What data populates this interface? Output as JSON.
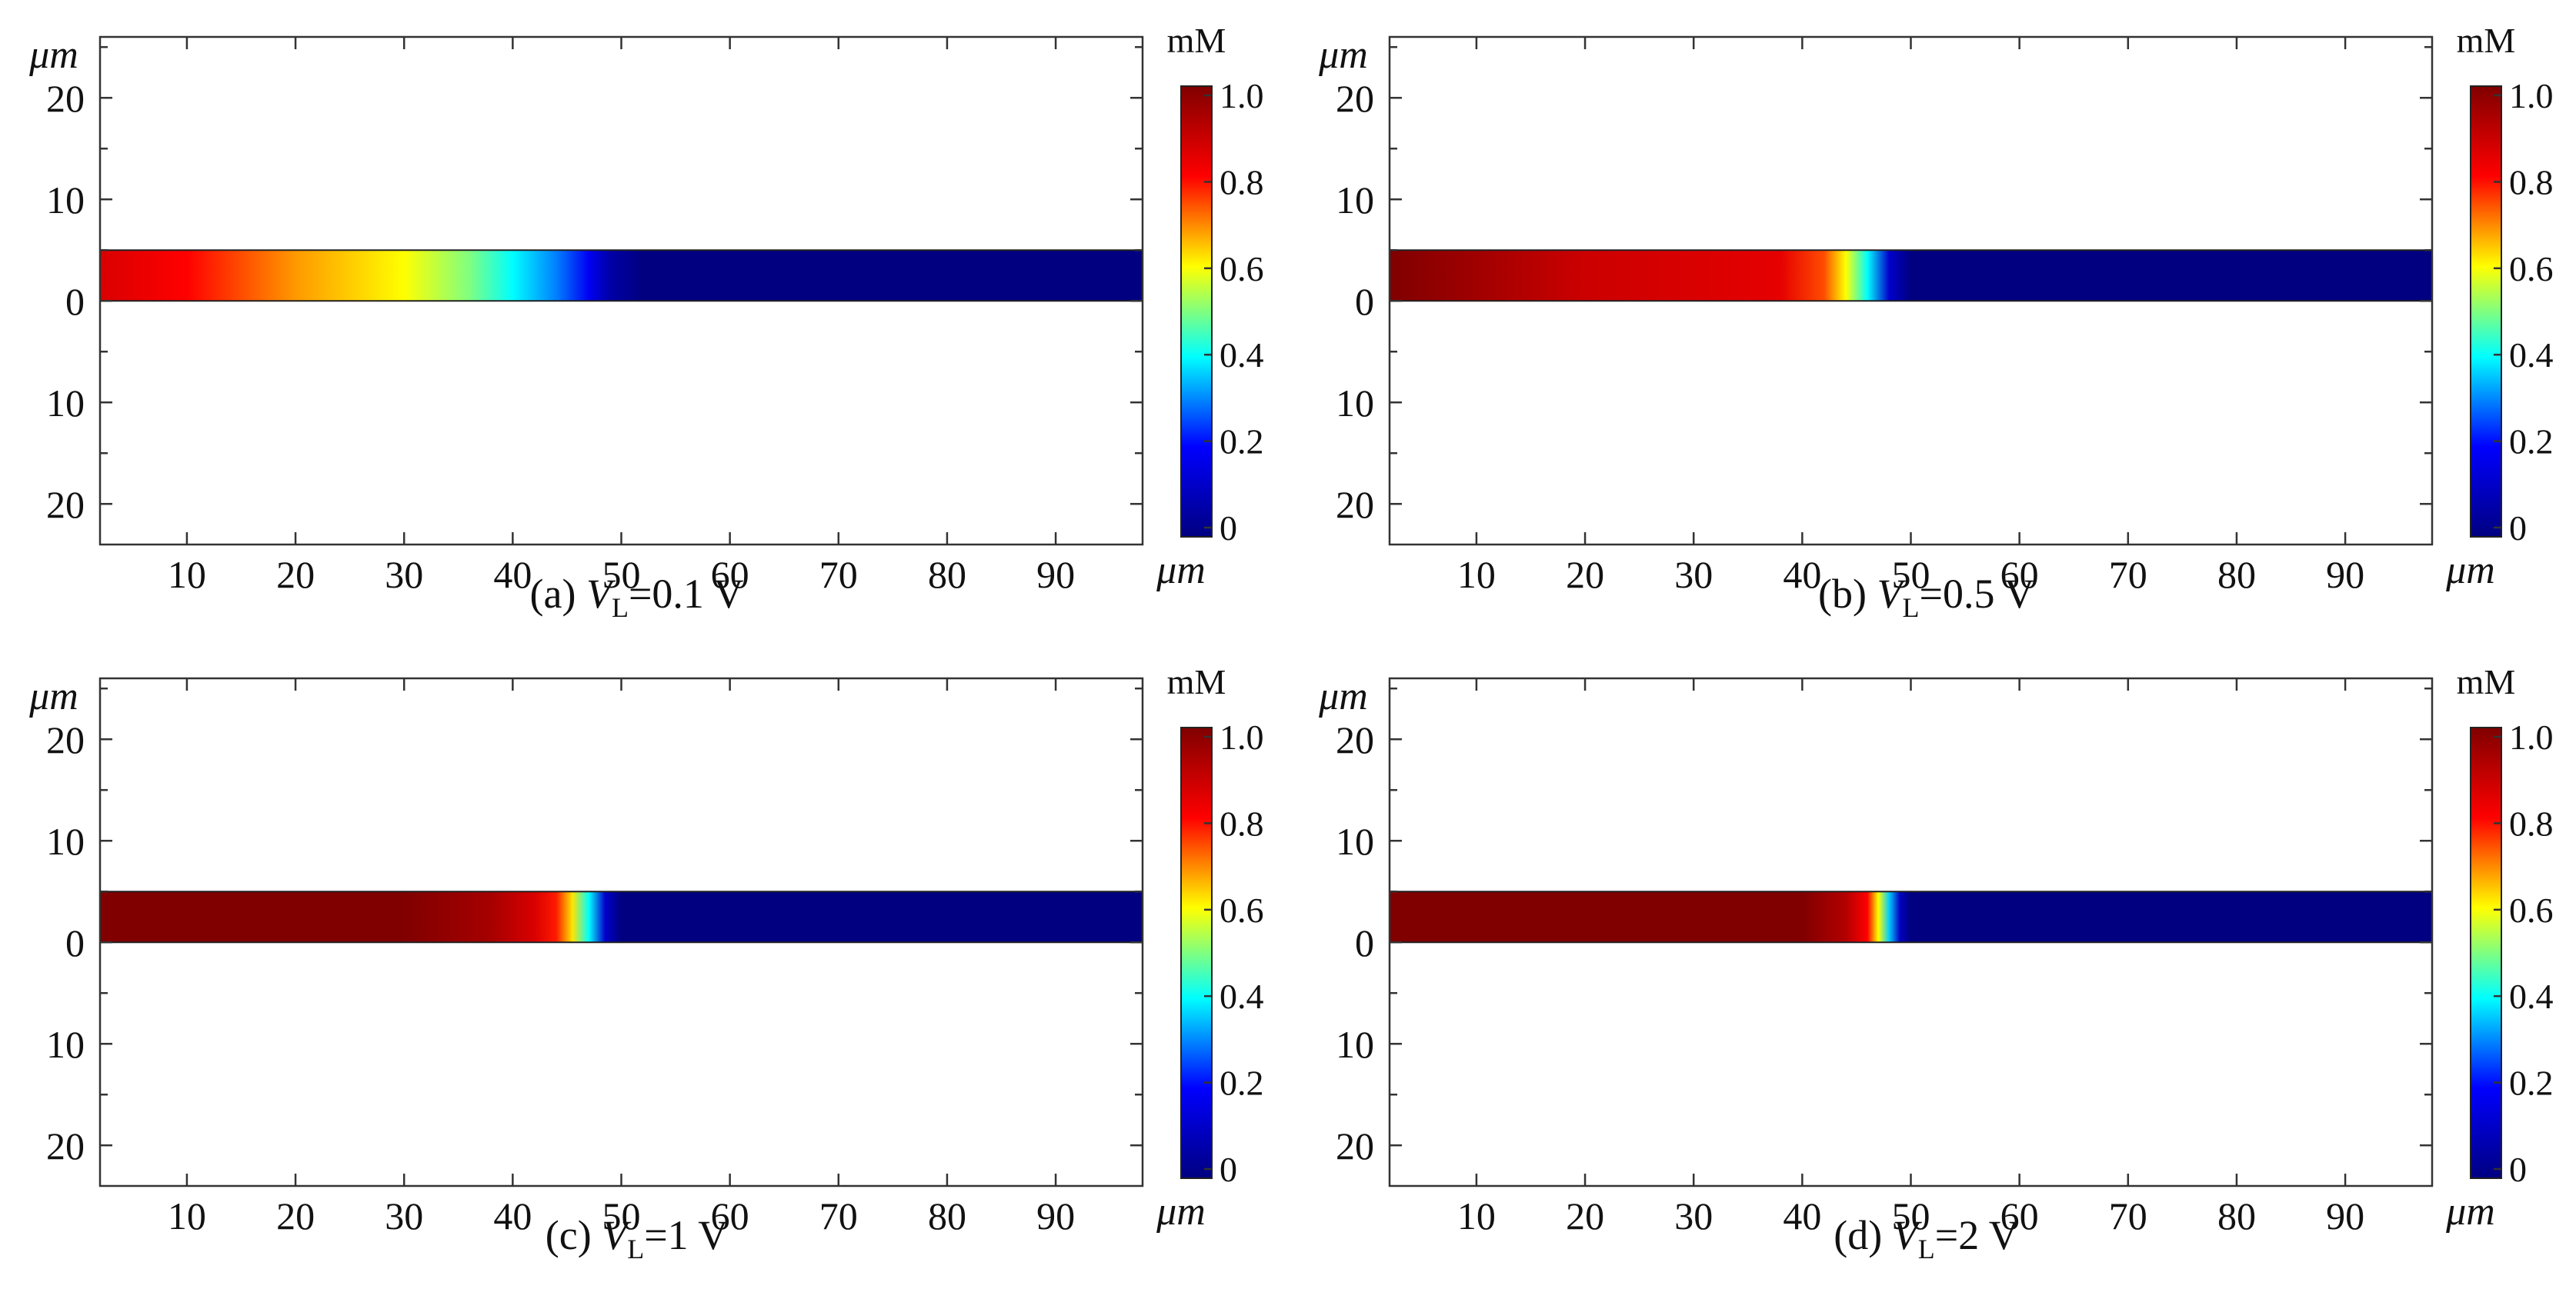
{
  "figure": {
    "colormap": [
      "#000080",
      "#0000ff",
      "#00ffff",
      "#ffff00",
      "#ff0000",
      "#800000"
    ],
    "frame_color": "#333333"
  },
  "chart_data": [
    {
      "type": "heatmap",
      "panel": "a",
      "caption_prefix": "(a)",
      "caption_var": "V",
      "caption_sub": "L",
      "caption_value": "=0.1 V",
      "x_unit": "μm",
      "y_unit": "μm",
      "xlim": [
        2,
        98
      ],
      "ylim": [
        -24,
        26
      ],
      "x_ticks": [
        10,
        20,
        30,
        40,
        50,
        60,
        70,
        80,
        90
      ],
      "y_ticks": [
        {
          "value": 20,
          "label": "20"
        },
        {
          "value": 10,
          "label": "10"
        },
        {
          "value": 0,
          "label": "0"
        },
        {
          "value": -10,
          "label": "10"
        },
        {
          "value": -20,
          "label": "20"
        }
      ],
      "channel_y": [
        0,
        5
      ],
      "colorbar": {
        "unit": "mM",
        "range": [
          0,
          1
        ],
        "ticks": [
          "1.0",
          "0.8",
          "0.6",
          "0.4",
          "0.2",
          "0"
        ]
      },
      "concentration_profile": [
        {
          "x": 2,
          "c": 0.86
        },
        {
          "x": 10,
          "c": 0.8
        },
        {
          "x": 20,
          "c": 0.68
        },
        {
          "x": 30,
          "c": 0.6
        },
        {
          "x": 36,
          "c": 0.5
        },
        {
          "x": 40,
          "c": 0.4
        },
        {
          "x": 44,
          "c": 0.3
        },
        {
          "x": 47,
          "c": 0.18
        },
        {
          "x": 49,
          "c": 0.06
        },
        {
          "x": 52,
          "c": 0.0
        },
        {
          "x": 98,
          "c": 0.0
        }
      ]
    },
    {
      "type": "heatmap",
      "panel": "b",
      "caption_prefix": "(b)",
      "caption_var": "V",
      "caption_sub": "L",
      "caption_value": "=0.5 V",
      "x_unit": "μm",
      "y_unit": "μm",
      "xlim": [
        2,
        98
      ],
      "ylim": [
        -24,
        26
      ],
      "x_ticks": [
        10,
        20,
        30,
        40,
        50,
        60,
        70,
        80,
        90
      ],
      "y_ticks": [
        {
          "value": 20,
          "label": "20"
        },
        {
          "value": 10,
          "label": "10"
        },
        {
          "value": 0,
          "label": "0"
        },
        {
          "value": -10,
          "label": "10"
        },
        {
          "value": -20,
          "label": "20"
        }
      ],
      "channel_y": [
        0,
        5
      ],
      "colorbar": {
        "unit": "mM",
        "range": [
          0,
          1
        ],
        "ticks": [
          "1.0",
          "0.8",
          "0.6",
          "0.4",
          "0.2",
          "0"
        ]
      },
      "concentration_profile": [
        {
          "x": 2,
          "c": 1.0
        },
        {
          "x": 10,
          "c": 0.95
        },
        {
          "x": 20,
          "c": 0.88
        },
        {
          "x": 30,
          "c": 0.86
        },
        {
          "x": 38,
          "c": 0.84
        },
        {
          "x": 42,
          "c": 0.74
        },
        {
          "x": 44,
          "c": 0.6
        },
        {
          "x": 46,
          "c": 0.4
        },
        {
          "x": 48,
          "c": 0.12
        },
        {
          "x": 50,
          "c": 0.0
        },
        {
          "x": 98,
          "c": 0.0
        }
      ]
    },
    {
      "type": "heatmap",
      "panel": "c",
      "caption_prefix": "(c)",
      "caption_var": "V",
      "caption_sub": "L",
      "caption_value": "=1 V",
      "x_unit": "μm",
      "y_unit": "μm",
      "xlim": [
        2,
        98
      ],
      "ylim": [
        -24,
        26
      ],
      "x_ticks": [
        10,
        20,
        30,
        40,
        50,
        60,
        70,
        80,
        90
      ],
      "y_ticks": [
        {
          "value": 20,
          "label": "20"
        },
        {
          "value": 10,
          "label": "10"
        },
        {
          "value": 0,
          "label": "0"
        },
        {
          "value": -10,
          "label": "10"
        },
        {
          "value": -20,
          "label": "20"
        }
      ],
      "channel_y": [
        0,
        5
      ],
      "colorbar": {
        "unit": "mM",
        "range": [
          0,
          1
        ],
        "ticks": [
          "1.0",
          "0.8",
          "0.6",
          "0.4",
          "0.2",
          "0"
        ]
      },
      "concentration_profile": [
        {
          "x": 2,
          "c": 1.0
        },
        {
          "x": 30,
          "c": 1.0
        },
        {
          "x": 38,
          "c": 0.94
        },
        {
          "x": 42,
          "c": 0.86
        },
        {
          "x": 44,
          "c": 0.78
        },
        {
          "x": 45.5,
          "c": 0.62
        },
        {
          "x": 47,
          "c": 0.4
        },
        {
          "x": 48.5,
          "c": 0.12
        },
        {
          "x": 50,
          "c": 0.0
        },
        {
          "x": 98,
          "c": 0.0
        }
      ]
    },
    {
      "type": "heatmap",
      "panel": "d",
      "caption_prefix": "(d)",
      "caption_var": "V",
      "caption_sub": "L",
      "caption_value": "=2 V",
      "x_unit": "μm",
      "y_unit": "μm",
      "xlim": [
        2,
        98
      ],
      "ylim": [
        -24,
        26
      ],
      "x_ticks": [
        10,
        20,
        30,
        40,
        50,
        60,
        70,
        80,
        90
      ],
      "y_ticks": [
        {
          "value": 20,
          "label": "20"
        },
        {
          "value": 10,
          "label": "10"
        },
        {
          "value": 0,
          "label": "0"
        },
        {
          "value": -10,
          "label": "10"
        },
        {
          "value": -20,
          "label": "20"
        }
      ],
      "channel_y": [
        0,
        5
      ],
      "colorbar": {
        "unit": "mM",
        "range": [
          0,
          1
        ],
        "ticks": [
          "1.0",
          "0.8",
          "0.6",
          "0.4",
          "0.2",
          "0"
        ]
      },
      "concentration_profile": [
        {
          "x": 2,
          "c": 1.0
        },
        {
          "x": 40,
          "c": 1.0
        },
        {
          "x": 44,
          "c": 0.92
        },
        {
          "x": 46,
          "c": 0.8
        },
        {
          "x": 47,
          "c": 0.6
        },
        {
          "x": 48,
          "c": 0.36
        },
        {
          "x": 49,
          "c": 0.1
        },
        {
          "x": 50,
          "c": 0.0
        },
        {
          "x": 98,
          "c": 0.0
        }
      ]
    }
  ]
}
